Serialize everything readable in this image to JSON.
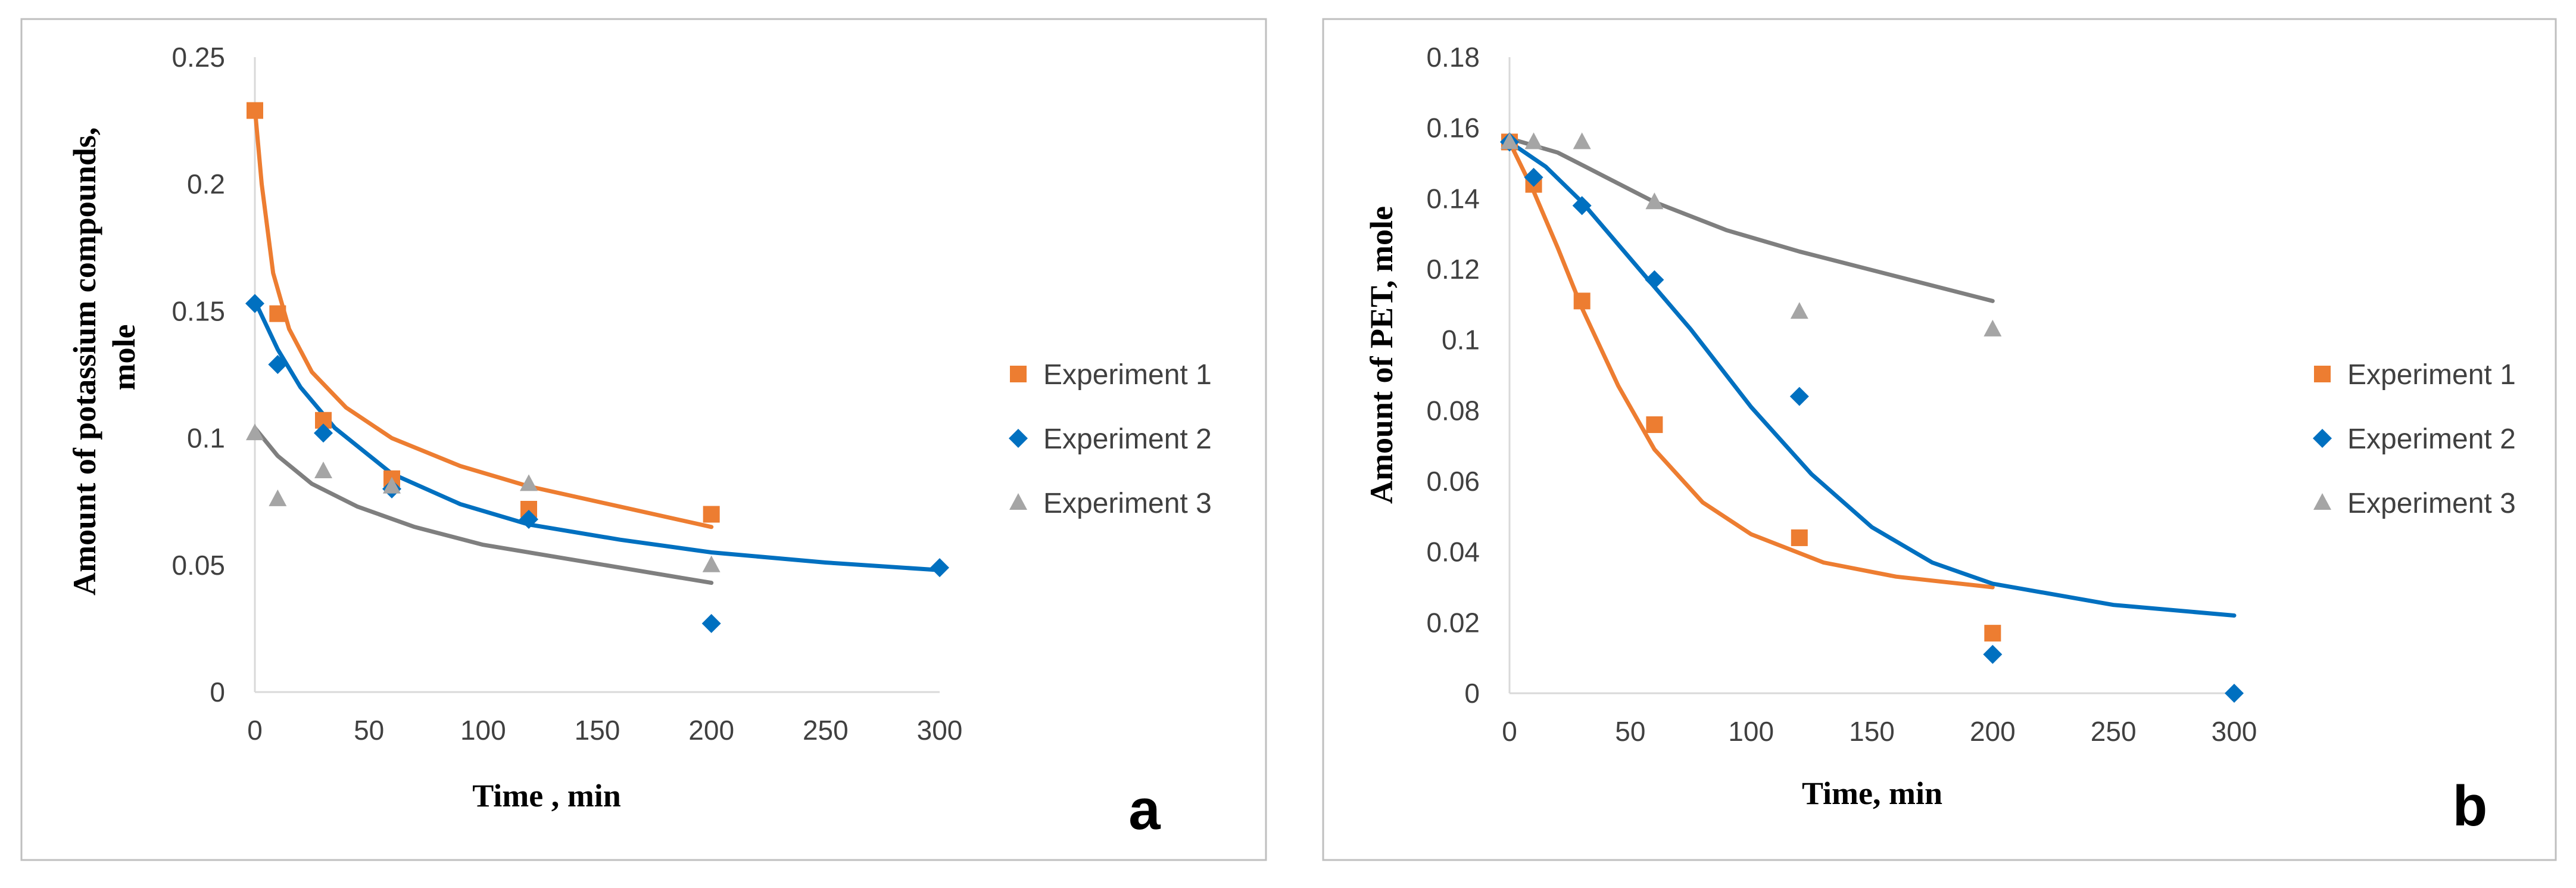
{
  "chart_data": [
    {
      "type": "scatter",
      "panel_label": "a",
      "xlabel": "Time , min",
      "ylabel": "Amount of potassium compounds, mole",
      "xlim": [
        0,
        300
      ],
      "ylim": [
        0,
        0.25
      ],
      "x_ticks": [
        "0",
        "50",
        "100",
        "150",
        "200",
        "250",
        "300"
      ],
      "y_ticks": [
        "0",
        "0.05",
        "0.1",
        "0.15",
        "0.2",
        "0.25"
      ],
      "legend_position": "right",
      "series": [
        {
          "name": "Experiment 1",
          "color": "#ED7D31",
          "marker": "square",
          "points": [
            [
              0,
              0.229
            ],
            [
              10,
              0.149
            ],
            [
              30,
              0.107
            ],
            [
              60,
              0.084
            ],
            [
              120,
              0.072
            ],
            [
              200,
              0.07
            ]
          ],
          "trend": [
            [
              0,
              0.23
            ],
            [
              3,
              0.2
            ],
            [
              8,
              0.165
            ],
            [
              15,
              0.143
            ],
            [
              25,
              0.126
            ],
            [
              40,
              0.112
            ],
            [
              60,
              0.1
            ],
            [
              90,
              0.089
            ],
            [
              120,
              0.081
            ],
            [
              160,
              0.073
            ],
            [
              200,
              0.065
            ]
          ]
        },
        {
          "name": "Experiment 2",
          "color": "#0070C0",
          "marker": "diamond",
          "points": [
            [
              0,
              0.153
            ],
            [
              10,
              0.129
            ],
            [
              30,
              0.102
            ],
            [
              60,
              0.08
            ],
            [
              120,
              0.068
            ],
            [
              200,
              0.027
            ],
            [
              300,
              0.049
            ]
          ],
          "trend": [
            [
              0,
              0.154
            ],
            [
              10,
              0.135
            ],
            [
              20,
              0.12
            ],
            [
              35,
              0.104
            ],
            [
              60,
              0.086
            ],
            [
              90,
              0.074
            ],
            [
              120,
              0.066
            ],
            [
              160,
              0.06
            ],
            [
              200,
              0.055
            ],
            [
              250,
              0.051
            ],
            [
              300,
              0.048
            ]
          ]
        },
        {
          "name": "Experiment 3",
          "color": "#A5A5A5",
          "trend_color": "#7F7F7F",
          "marker": "triangle",
          "points": [
            [
              0,
              0.102
            ],
            [
              10,
              0.076
            ],
            [
              30,
              0.087
            ],
            [
              60,
              0.081
            ],
            [
              120,
              0.082
            ],
            [
              200,
              0.05
            ]
          ],
          "trend": [
            [
              0,
              0.104
            ],
            [
              10,
              0.093
            ],
            [
              25,
              0.082
            ],
            [
              45,
              0.073
            ],
            [
              70,
              0.065
            ],
            [
              100,
              0.058
            ],
            [
              140,
              0.052
            ],
            [
              200,
              0.043
            ]
          ]
        }
      ]
    },
    {
      "type": "scatter",
      "panel_label": "b",
      "xlabel": "Time, min",
      "ylabel": "Amount of PET, mole",
      "xlim": [
        0,
        300
      ],
      "ylim": [
        0,
        0.18
      ],
      "x_ticks": [
        "0",
        "50",
        "100",
        "150",
        "200",
        "250",
        "300"
      ],
      "y_ticks": [
        "0",
        "0.02",
        "0.04",
        "0.06",
        "0.08",
        "0.1",
        "0.12",
        "0.14",
        "0.16",
        "0.18"
      ],
      "legend_position": "right",
      "series": [
        {
          "name": "Experiment 1",
          "color": "#ED7D31",
          "marker": "square",
          "points": [
            [
              0,
              0.156
            ],
            [
              10,
              0.144
            ],
            [
              30,
              0.111
            ],
            [
              60,
              0.076
            ],
            [
              120,
              0.044
            ],
            [
              200,
              0.017
            ]
          ],
          "trend": [
            [
              0,
              0.156
            ],
            [
              10,
              0.142
            ],
            [
              20,
              0.126
            ],
            [
              30,
              0.109
            ],
            [
              45,
              0.087
            ],
            [
              60,
              0.069
            ],
            [
              80,
              0.054
            ],
            [
              100,
              0.045
            ],
            [
              130,
              0.037
            ],
            [
              160,
              0.033
            ],
            [
              200,
              0.03
            ]
          ]
        },
        {
          "name": "Experiment 2",
          "color": "#0070C0",
          "marker": "diamond",
          "points": [
            [
              0,
              0.156
            ],
            [
              10,
              0.146
            ],
            [
              30,
              0.138
            ],
            [
              60,
              0.117
            ],
            [
              120,
              0.084
            ],
            [
              200,
              0.011
            ],
            [
              300,
              0.0
            ]
          ],
          "trend": [
            [
              0,
              0.156
            ],
            [
              15,
              0.149
            ],
            [
              30,
              0.139
            ],
            [
              50,
              0.123
            ],
            [
              75,
              0.103
            ],
            [
              100,
              0.081
            ],
            [
              125,
              0.062
            ],
            [
              150,
              0.047
            ],
            [
              175,
              0.037
            ],
            [
              200,
              0.031
            ],
            [
              250,
              0.025
            ],
            [
              300,
              0.022
            ]
          ]
        },
        {
          "name": "Experiment 3",
          "color": "#A5A5A5",
          "trend_color": "#7F7F7F",
          "marker": "triangle",
          "points": [
            [
              0,
              0.156
            ],
            [
              10,
              0.156
            ],
            [
              30,
              0.156
            ],
            [
              60,
              0.139
            ],
            [
              120,
              0.108
            ],
            [
              200,
              0.103
            ]
          ],
          "trend": [
            [
              0,
              0.157
            ],
            [
              20,
              0.153
            ],
            [
              40,
              0.146
            ],
            [
              60,
              0.139
            ],
            [
              90,
              0.131
            ],
            [
              120,
              0.125
            ],
            [
              160,
              0.118
            ],
            [
              200,
              0.111
            ]
          ]
        }
      ]
    }
  ]
}
